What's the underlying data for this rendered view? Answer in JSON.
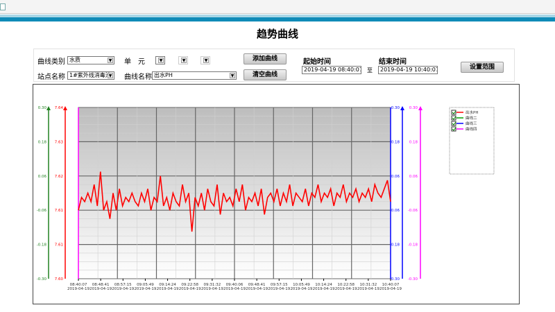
{
  "page": {
    "title": "趋势曲线"
  },
  "controls": {
    "curve_type_label": "曲线类别",
    "curve_type_value": "水质",
    "unit_label": "单　元",
    "station_label": "站点名称",
    "station_value": "1#紫外线消毒池",
    "curve_name_label": "曲线名称",
    "curve_name_value": "出水PH",
    "add_curve": "添加曲线",
    "clear_curve": "清空曲线",
    "start_label": "起始时间",
    "start_value": "2019-04-19 08:40:07",
    "to_label": "至",
    "end_label": "结束时间",
    "end_value": "2019-04-19 10:40:07",
    "set_range": "设置范围"
  },
  "chart_data": {
    "type": "line",
    "x_ticks": [
      "08:40:07",
      "08:48:41",
      "08:57:15",
      "09:05:49",
      "09:14:24",
      "09:22:58",
      "09:31:32",
      "09:40:06",
      "09:48:41",
      "09:57:15",
      "10:05:49",
      "10:14:24",
      "10:22:58",
      "10:31:32",
      "10:40:07"
    ],
    "x_date": "2019-04-19",
    "axes": [
      {
        "color": "#208020",
        "side": "left",
        "ticks": [
          "0.30",
          "0.18",
          "0.06",
          "-0.06",
          "-0.18",
          "-0.30"
        ]
      },
      {
        "color": "#ff0000",
        "side": "left",
        "ticks": [
          "7.64",
          "7.63",
          "7.62",
          "7.61",
          "7.61",
          "7.60"
        ],
        "range": [
          7.6,
          7.64
        ]
      },
      {
        "color": "#0000ff",
        "side": "right",
        "ticks": [
          "0.30",
          "0.18",
          "0.06",
          "-0.06",
          "-0.18",
          "-0.30"
        ]
      },
      {
        "color": "#ff00ff",
        "side": "right",
        "ticks": [
          "0.30",
          "0.18",
          "0.06",
          "-0.06",
          "-0.18",
          "-0.30"
        ]
      }
    ],
    "legend": [
      {
        "name": "出水PH",
        "color": "#ff0000",
        "checked": true
      },
      {
        "name": "曲线二",
        "color": "#00a000",
        "checked": true
      },
      {
        "name": "曲线三",
        "color": "#0000ff",
        "checked": true
      },
      {
        "name": "曲线四",
        "color": "#ff00ff",
        "checked": true
      }
    ],
    "legend_position": "right",
    "series": [
      {
        "name": "出水PH",
        "color": "#ff0000",
        "values": [
          7.616,
          7.619,
          7.618,
          7.62,
          7.618,
          7.622,
          7.617,
          7.625,
          7.616,
          7.618,
          7.614,
          7.62,
          7.616,
          7.621,
          7.617,
          7.619,
          7.618,
          7.62,
          7.618,
          7.617,
          7.62,
          7.618,
          7.621,
          7.616,
          7.619,
          7.618,
          7.624,
          7.617,
          7.619,
          7.616,
          7.62,
          7.618,
          7.617,
          7.622,
          7.618,
          7.62,
          7.611,
          7.619,
          7.617,
          7.62,
          7.616,
          7.621,
          7.618,
          7.617,
          7.622,
          7.615,
          7.62,
          7.618,
          7.619,
          7.617,
          7.621,
          7.618,
          7.622,
          7.616,
          7.619,
          7.618,
          7.62,
          7.617,
          7.621,
          7.615,
          7.619,
          7.62,
          7.618,
          7.621,
          7.617,
          7.62,
          7.618,
          7.622,
          7.617,
          7.62,
          7.619,
          7.618,
          7.621,
          7.617,
          7.62,
          7.619,
          7.622,
          7.618,
          7.62,
          7.619,
          7.621,
          7.617,
          7.62,
          7.619,
          7.622,
          7.618,
          7.62,
          7.619,
          7.621,
          7.618,
          7.62,
          7.619,
          7.621,
          7.618,
          7.622,
          7.62,
          7.619,
          7.621,
          7.623,
          7.618
        ]
      }
    ]
  }
}
